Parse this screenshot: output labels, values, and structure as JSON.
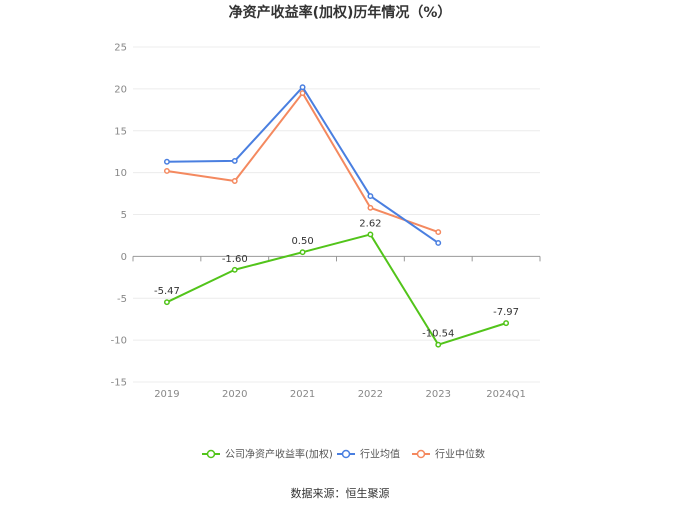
{
  "chart_data": {
    "type": "line",
    "title": "净资产收益率(加权)历年情况（%）",
    "categories": [
      "2019",
      "2020",
      "2021",
      "2022",
      "2023",
      "2024Q1"
    ],
    "ylim": [
      -15,
      25
    ],
    "yticks": [
      "25",
      "20",
      "15",
      "10",
      "5",
      "0",
      "-5",
      "-10",
      "-15"
    ],
    "grid": true,
    "legend_position": "bottom",
    "series": [
      {
        "name": "公司净资产收益率(加权)",
        "color": "#52c41a",
        "values": [
          -5.47,
          -1.6,
          0.5,
          2.62,
          -10.54,
          -7.97
        ],
        "labels": [
          "-5.47",
          "-1.60",
          "0.50",
          "2.62",
          "-10.54",
          "-7.97"
        ]
      },
      {
        "name": "行业均值",
        "color": "#4a7fe0",
        "values": [
          11.3,
          11.4,
          20.2,
          7.2,
          1.6,
          null
        ]
      },
      {
        "name": "行业中位数",
        "color": "#f4895f",
        "values": [
          10.2,
          9.0,
          19.5,
          5.8,
          2.9,
          null
        ]
      }
    ],
    "source": "数据来源：恒生聚源"
  }
}
